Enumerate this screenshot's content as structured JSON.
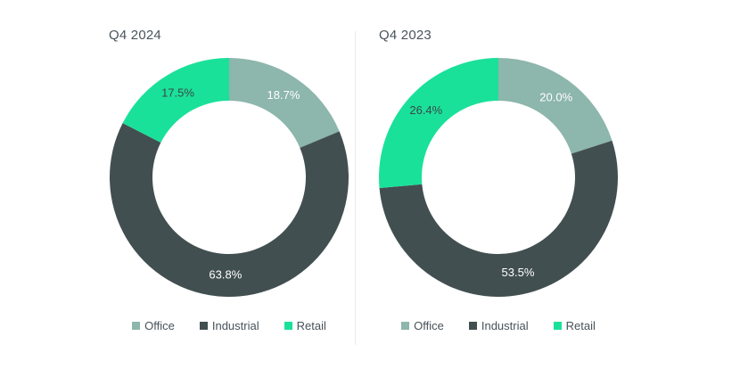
{
  "page": {
    "background": "#ffffff",
    "divider_color": "#E9EBEB",
    "title_text_color": "#49545A",
    "legend_text_color": "#47525A"
  },
  "chart_data": [
    {
      "type": "pie",
      "subtype": "donut",
      "title": "Q4 2024",
      "categories": [
        "Office",
        "Industrial",
        "Retail"
      ],
      "values": [
        18.7,
        63.8,
        17.5
      ],
      "value_labels": [
        "18.7%",
        "63.8%",
        "17.5%"
      ],
      "colors": [
        "#8DB6AC",
        "#424F51",
        "#1AE19A"
      ],
      "label_colors": [
        "#FFFFFF",
        "#FFFFFF",
        "#3B4749"
      ],
      "start_angle_deg": 0,
      "direction": "clockwise",
      "legend_position": "bottom",
      "legend": [
        "Office",
        "Industrial",
        "Retail"
      ]
    },
    {
      "type": "pie",
      "subtype": "donut",
      "title": "Q4 2023",
      "categories": [
        "Office",
        "Industrial",
        "Retail"
      ],
      "values": [
        20.0,
        53.5,
        26.4
      ],
      "value_labels": [
        "20.0%",
        "53.5%",
        "26.4%"
      ],
      "colors": [
        "#8DB6AC",
        "#424F51",
        "#1AE19A"
      ],
      "label_colors": [
        "#FFFFFF",
        "#FFFFFF",
        "#3B4749"
      ],
      "start_angle_deg": 0,
      "direction": "clockwise",
      "legend_position": "bottom",
      "legend": [
        "Office",
        "Industrial",
        "Retail"
      ]
    }
  ]
}
